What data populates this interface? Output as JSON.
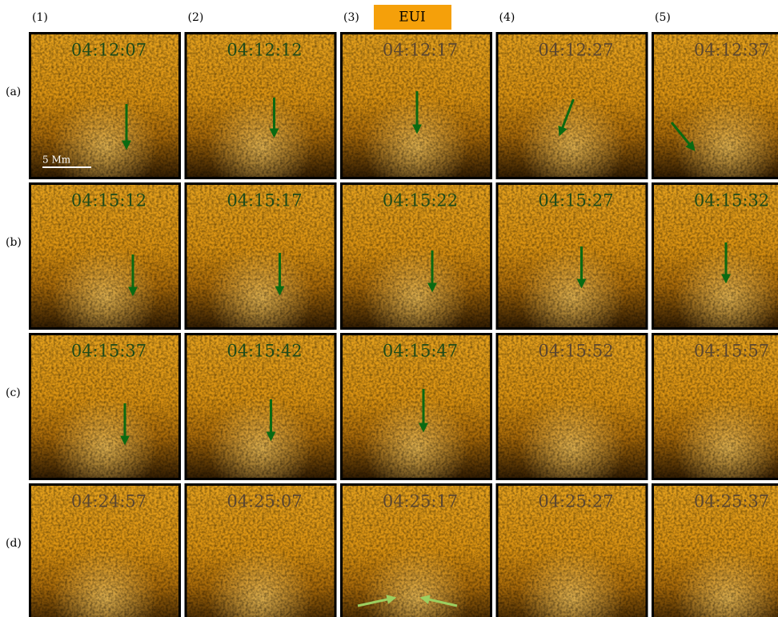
{
  "instrument": "EUI",
  "column_labels": [
    "(1)",
    "(2)",
    "(3)",
    "(4)",
    "(5)"
  ],
  "row_labels": [
    "(a)",
    "(b)",
    "(c)",
    "(d)"
  ],
  "scale_bar": "5 Mm",
  "panels": [
    [
      "04:12:07",
      "04:12:12",
      "04:12:17",
      "04:12:27",
      "04:12:37"
    ],
    [
      "04:15:12",
      "04:15:17",
      "04:15:22",
      "04:15:27",
      "04:15:32"
    ],
    [
      "04:15:37",
      "04:15:42",
      "04:15:47",
      "04:15:52",
      "04:15:57"
    ],
    [
      "04:24:57",
      "04:25:07",
      "04:25:17",
      "04:25:27",
      "04:25:37"
    ]
  ]
}
